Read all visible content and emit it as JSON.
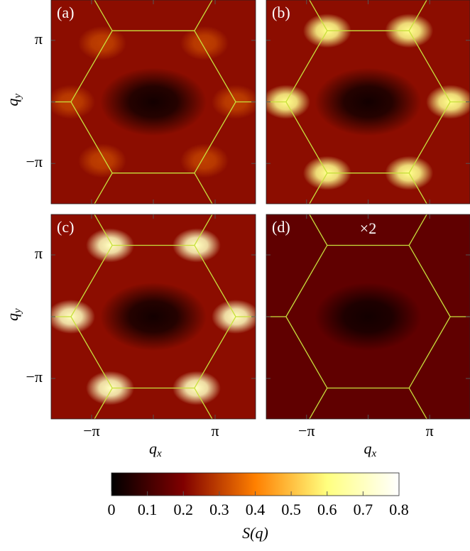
{
  "chart_data": [
    {
      "type": "heatmap",
      "panel_label": "(a)",
      "xlim": [
        -5.2,
        5.2
      ],
      "ylim": [
        -5.2,
        5.2
      ],
      "xticks": [
        -3.1416,
        0,
        3.1416
      ],
      "yticks": [
        {
          "value": -3.1416,
          "label": "−π"
        },
        0,
        {
          "value": 3.1416,
          "label": "π"
        }
      ],
      "ylabel": {
        "main": "q",
        "sub": "y"
      },
      "background": 0.22,
      "zone_color": "#c8e03c",
      "zone_x": [
        4.19,
        2.09,
        -2.09,
        -4.19,
        -2.09,
        2.09
      ],
      "zone_y": [
        0,
        3.63,
        3.63,
        0,
        -3.63,
        -3.63
      ],
      "spots": [
        {
          "x": 0,
          "y": 0,
          "value": 0.03
        },
        {
          "x": 4.19,
          "y": 0,
          "value": 0.3
        },
        {
          "x": -4.19,
          "y": 0,
          "value": 0.3
        },
        {
          "x": 2.6,
          "y": 3.0,
          "value": 0.3
        },
        {
          "x": -2.6,
          "y": 3.0,
          "value": 0.3
        },
        {
          "x": 2.6,
          "y": -3.0,
          "value": 0.3
        },
        {
          "x": -2.6,
          "y": -3.0,
          "value": 0.3
        }
      ]
    },
    {
      "type": "heatmap",
      "panel_label": "(b)",
      "xlim": [
        -5.2,
        5.2
      ],
      "ylim": [
        -5.2,
        5.2
      ],
      "xticks": [
        -3.1416,
        0,
        3.1416
      ],
      "yticks": [
        -3.1416,
        0,
        3.1416
      ],
      "background": 0.22,
      "zone_color": "#c8e03c",
      "zone_x": [
        4.19,
        2.09,
        -2.09,
        -4.19,
        -2.09,
        2.09
      ],
      "zone_y": [
        0,
        3.63,
        3.63,
        0,
        -3.63,
        -3.63
      ],
      "spots": [
        {
          "x": 0,
          "y": 0,
          "value": 0.03
        },
        {
          "x": 4.19,
          "y": 0,
          "value": 0.62
        },
        {
          "x": -4.19,
          "y": 0,
          "value": 0.62
        },
        {
          "x": 2.09,
          "y": 3.63,
          "value": 0.62
        },
        {
          "x": -2.09,
          "y": 3.63,
          "value": 0.62
        },
        {
          "x": 2.09,
          "y": -3.63,
          "value": 0.62
        },
        {
          "x": -2.09,
          "y": -3.63,
          "value": 0.62
        }
      ]
    },
    {
      "type": "heatmap",
      "panel_label": "(c)",
      "xlim": [
        -5.2,
        5.2
      ],
      "ylim": [
        -5.2,
        5.2
      ],
      "xticks": [
        {
          "value": -3.1416,
          "label": "−π"
        },
        0,
        {
          "value": 3.1416,
          "label": "π"
        }
      ],
      "yticks": [
        {
          "value": -3.1416,
          "label": "−π"
        },
        0,
        {
          "value": 3.1416,
          "label": "π"
        }
      ],
      "xlabel": {
        "main": "q",
        "sub": "x"
      },
      "ylabel": {
        "main": "q",
        "sub": "y"
      },
      "background": 0.22,
      "zone_color": "#c8e03c",
      "zone_x": [
        4.19,
        2.09,
        -2.09,
        -4.19,
        -2.09,
        2.09
      ],
      "zone_y": [
        0,
        3.63,
        3.63,
        0,
        -3.63,
        -3.63
      ],
      "spots": [
        {
          "x": 0,
          "y": 0,
          "value": 0.03
        },
        {
          "x": 4.19,
          "y": 0,
          "value": 0.7
        },
        {
          "x": -4.19,
          "y": 0,
          "value": 0.7
        },
        {
          "x": 2.2,
          "y": 3.63,
          "value": 0.7
        },
        {
          "x": -2.2,
          "y": 3.63,
          "value": 0.7
        },
        {
          "x": 2.2,
          "y": -3.63,
          "value": 0.7
        },
        {
          "x": -2.2,
          "y": -3.63,
          "value": 0.7
        }
      ]
    },
    {
      "type": "heatmap",
      "panel_label": "(d)",
      "annotation": "×2",
      "xlim": [
        -5.2,
        5.2
      ],
      "ylim": [
        -5.2,
        5.2
      ],
      "xticks": [
        {
          "value": -3.1416,
          "label": "−π"
        },
        0,
        {
          "value": 3.1416,
          "label": "π"
        }
      ],
      "yticks": [
        -3.1416,
        0,
        3.1416
      ],
      "xlabel": {
        "main": "q",
        "sub": "x"
      },
      "background": 0.15,
      "zone_color": "#c8e03c",
      "zone_x": [
        4.19,
        2.09,
        -2.09,
        -4.19,
        -2.09,
        2.09
      ],
      "zone_y": [
        0,
        3.63,
        3.63,
        0,
        -3.63,
        -3.63
      ],
      "spots": [
        {
          "x": 0,
          "y": 0,
          "value": 0.03
        }
      ]
    },
    {
      "type": "colorbar",
      "label": "S(q)",
      "xlim": [
        0,
        0.8
      ],
      "xticks": [
        0,
        0.1,
        0.2,
        0.3,
        0.4,
        0.5,
        0.6,
        0.7,
        0.8
      ]
    }
  ]
}
